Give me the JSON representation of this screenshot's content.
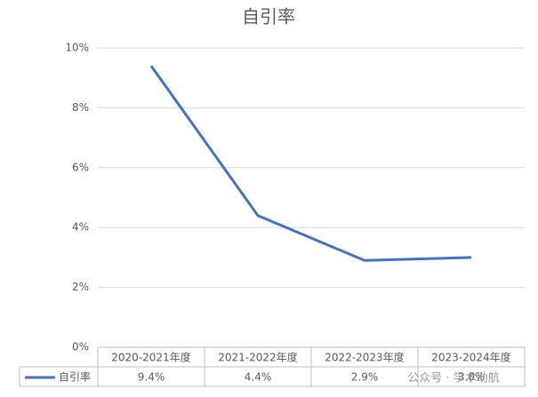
{
  "chart_data": {
    "type": "line",
    "title": "自引率",
    "categories": [
      "2020-2021年度",
      "2021-2022年度",
      "2022-2023年度",
      "2023-2024年度"
    ],
    "series": [
      {
        "name": "自引率",
        "color": "#4472c4",
        "values": [
          9.4,
          4.4,
          2.9,
          3.0
        ],
        "value_labels": [
          "9.4%",
          "4.4%",
          "2.9%",
          "3.0%"
        ]
      }
    ],
    "ylim": [
      0,
      10
    ],
    "yticks": [
      {
        "value": 0,
        "label": "0%"
      },
      {
        "value": 2,
        "label": "2%"
      },
      {
        "value": 4,
        "label": "4%"
      },
      {
        "value": 6,
        "label": "6%"
      },
      {
        "value": 8,
        "label": "8%"
      },
      {
        "value": 10,
        "label": "10%"
      }
    ],
    "grid": true
  },
  "watermark": "公众号 · 学术助航"
}
